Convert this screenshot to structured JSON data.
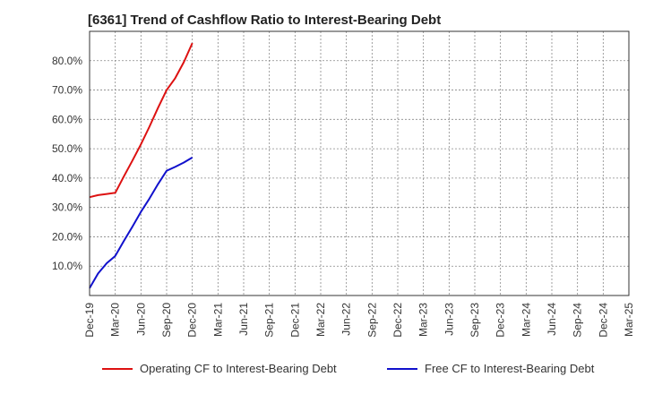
{
  "chart_data": {
    "type": "line",
    "title": "[6361]  Trend of Cashflow Ratio to Interest-Bearing Debt",
    "xlabel": "",
    "ylabel": "",
    "categories": [
      "Dec-19",
      "Mar-20",
      "Jun-20",
      "Sep-20",
      "Dec-20",
      "Mar-21",
      "Jun-21",
      "Sep-21",
      "Dec-21",
      "Mar-22",
      "Jun-22",
      "Sep-22",
      "Dec-22",
      "Mar-23",
      "Jun-23",
      "Sep-23",
      "Dec-23",
      "Mar-24",
      "Jun-24",
      "Sep-24",
      "Dec-24",
      "Mar-25"
    ],
    "ylim": [
      0,
      90
    ],
    "yticks": [
      10,
      20,
      30,
      40,
      50,
      60,
      70,
      80
    ],
    "ytick_labels": [
      "10.0%",
      "20.0%",
      "30.0%",
      "40.0%",
      "50.0%",
      "60.0%",
      "70.0%",
      "80.0%"
    ],
    "grid": true,
    "legend_position": "bottom",
    "series": [
      {
        "name": "Operating CF to Interest-Bearing Debt",
        "color": "#dd1111",
        "points": [
          {
            "x": 0,
            "y": 33.5
          },
          {
            "x": 0.33,
            "y": 34.2
          },
          {
            "x": 0.67,
            "y": 34.6
          },
          {
            "x": 1,
            "y": 35.0
          },
          {
            "x": 1.33,
            "y": 40.5
          },
          {
            "x": 1.67,
            "y": 46.0
          },
          {
            "x": 2,
            "y": 51.5
          },
          {
            "x": 2.33,
            "y": 57.5
          },
          {
            "x": 2.67,
            "y": 64.0
          },
          {
            "x": 3,
            "y": 70.0
          },
          {
            "x": 3.33,
            "y": 74.0
          },
          {
            "x": 3.67,
            "y": 79.5
          },
          {
            "x": 4,
            "y": 86.0
          }
        ]
      },
      {
        "name": "Free CF to Interest-Bearing Debt",
        "color": "#1111cc",
        "points": [
          {
            "x": 0,
            "y": 2.5
          },
          {
            "x": 0.33,
            "y": 7.5
          },
          {
            "x": 0.67,
            "y": 11.0
          },
          {
            "x": 1,
            "y": 13.5
          },
          {
            "x": 1.33,
            "y": 18.5
          },
          {
            "x": 1.67,
            "y": 23.5
          },
          {
            "x": 2,
            "y": 28.5
          },
          {
            "x": 2.33,
            "y": 33.0
          },
          {
            "x": 2.67,
            "y": 38.0
          },
          {
            "x": 3,
            "y": 42.5
          },
          {
            "x": 3.33,
            "y": 43.8
          },
          {
            "x": 3.67,
            "y": 45.3
          },
          {
            "x": 4,
            "y": 47.0
          }
        ]
      }
    ]
  }
}
